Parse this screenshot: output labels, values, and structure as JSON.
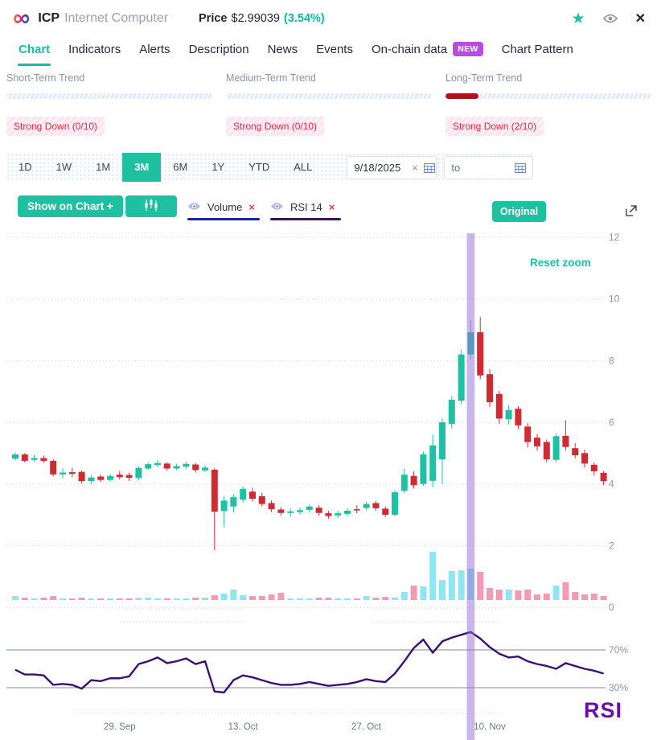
{
  "header": {
    "symbol": "ICP",
    "name": "Internet Computer",
    "price_label": "Price",
    "price": "$2.99039",
    "change": "(3.54%)",
    "accent_color": "#10b99c"
  },
  "tabs": [
    {
      "label": "Chart",
      "active": true
    },
    {
      "label": "Indicators"
    },
    {
      "label": "Alerts"
    },
    {
      "label": "Description"
    },
    {
      "label": "News"
    },
    {
      "label": "Events"
    },
    {
      "label": "On-chain data",
      "badge": "NEW"
    },
    {
      "label": "Chart Pattern"
    }
  ],
  "trends": [
    {
      "label": "Short-Term Trend",
      "status": "Strong Down (0/10)",
      "fill_pct": 0
    },
    {
      "label": "Medium-Term Trend",
      "status": "Strong Down (0/10)",
      "fill_pct": 0
    },
    {
      "label": "Long-Term Trend",
      "status": "Strong Down (2/10)",
      "fill_pct": 16
    }
  ],
  "range_buttons": [
    {
      "label": "1D"
    },
    {
      "label": "1W"
    },
    {
      "label": "1M"
    },
    {
      "label": "3M",
      "active": true
    },
    {
      "label": "6M"
    },
    {
      "label": "1Y"
    },
    {
      "label": "YTD"
    },
    {
      "label": "ALL"
    }
  ],
  "date_from": {
    "value": "9/18/2025",
    "clear": "×"
  },
  "date_to": {
    "placeholder": "to"
  },
  "controls": {
    "show_on_chart": "Show on Chart +",
    "indicators": [
      {
        "label": "Volume",
        "remove": "×",
        "underline_color": "#1a1adf"
      },
      {
        "label": "RSI 14",
        "remove": "×",
        "underline_color": "#3b1266"
      }
    ],
    "original": "Original",
    "reset_zoom": "Reset zoom"
  },
  "chart_data": {
    "type": "candlestick",
    "panes": [
      "price",
      "volume",
      "rsi"
    ],
    "y_axis": {
      "labels": [
        12,
        10,
        8,
        6,
        4,
        2,
        0
      ],
      "min": 0,
      "max": 12
    },
    "rsi_axis": {
      "labels": [
        "70%",
        "30%"
      ],
      "levels": [
        70,
        30
      ]
    },
    "rsi_label": "RSI",
    "x_ticks": [
      {
        "index": 11,
        "label": "29. Sep"
      },
      {
        "index": 24,
        "label": "13. Oct"
      },
      {
        "index": 37,
        "label": "27. Oct"
      },
      {
        "index": 50,
        "label": "10. Nov"
      }
    ],
    "highlight_index": 48,
    "candles": [
      [
        4.82,
        5.02,
        4.76,
        4.96
      ],
      [
        4.96,
        5.0,
        4.7,
        4.75
      ],
      [
        4.78,
        4.95,
        4.72,
        4.84
      ],
      [
        4.84,
        4.92,
        4.68,
        4.75
      ],
      [
        4.75,
        4.8,
        4.24,
        4.31
      ],
      [
        4.31,
        4.5,
        4.18,
        4.37
      ],
      [
        4.38,
        4.52,
        4.22,
        4.33
      ],
      [
        4.39,
        4.44,
        4.02,
        4.09
      ],
      [
        4.09,
        4.28,
        4.0,
        4.21
      ],
      [
        4.24,
        4.31,
        4.06,
        4.13
      ],
      [
        4.13,
        4.32,
        4.08,
        4.26
      ],
      [
        4.3,
        4.42,
        4.14,
        4.22
      ],
      [
        4.29,
        4.36,
        4.1,
        4.2
      ],
      [
        4.19,
        4.57,
        4.13,
        4.52
      ],
      [
        4.5,
        4.7,
        4.45,
        4.64
      ],
      [
        4.61,
        4.77,
        4.55,
        4.68
      ],
      [
        4.66,
        4.71,
        4.43,
        4.5
      ],
      [
        4.5,
        4.66,
        4.45,
        4.58
      ],
      [
        4.56,
        4.73,
        4.49,
        4.65
      ],
      [
        4.63,
        4.67,
        4.37,
        4.45
      ],
      [
        4.44,
        4.61,
        4.39,
        4.53
      ],
      [
        4.46,
        4.52,
        1.85,
        3.1
      ],
      [
        3.12,
        3.62,
        2.6,
        3.46
      ],
      [
        3.27,
        3.67,
        3.08,
        3.57
      ],
      [
        3.49,
        3.92,
        3.4,
        3.84
      ],
      [
        3.75,
        3.88,
        3.43,
        3.52
      ],
      [
        3.6,
        3.71,
        3.27,
        3.35
      ],
      [
        3.38,
        3.47,
        3.09,
        3.18
      ],
      [
        3.17,
        3.25,
        2.97,
        3.06
      ],
      [
        3.06,
        3.21,
        2.95,
        3.11
      ],
      [
        3.09,
        3.23,
        3.01,
        3.15
      ],
      [
        3.16,
        3.33,
        3.07,
        3.27
      ],
      [
        3.23,
        3.31,
        2.97,
        3.06
      ],
      [
        3.05,
        3.13,
        2.87,
        2.96
      ],
      [
        2.98,
        3.13,
        2.89,
        3.05
      ],
      [
        3.03,
        3.21,
        2.95,
        3.13
      ],
      [
        3.18,
        3.31,
        3.05,
        3.14
      ],
      [
        3.22,
        3.43,
        3.15,
        3.35
      ],
      [
        3.38,
        3.45,
        3.13,
        3.21
      ],
      [
        3.2,
        3.27,
        2.93,
        3.0
      ],
      [
        3.0,
        3.8,
        2.94,
        3.73
      ],
      [
        3.78,
        4.5,
        3.7,
        4.3
      ],
      [
        4.26,
        4.41,
        3.85,
        3.96
      ],
      [
        4.0,
        5.05,
        3.94,
        4.96
      ],
      [
        4.1,
        5.6,
        3.9,
        5.25
      ],
      [
        4.8,
        6.12,
        4.0,
        6.0
      ],
      [
        5.95,
        6.85,
        5.8,
        6.73
      ],
      [
        6.7,
        8.35,
        6.58,
        8.2
      ],
      [
        8.2,
        9.3,
        8.05,
        8.92
      ],
      [
        8.92,
        9.42,
        7.4,
        7.52
      ],
      [
        7.56,
        7.72,
        6.5,
        6.65
      ],
      [
        6.92,
        7.02,
        5.95,
        6.12
      ],
      [
        6.1,
        6.56,
        5.93,
        6.4
      ],
      [
        6.44,
        6.52,
        5.78,
        5.9
      ],
      [
        5.86,
        5.97,
        5.18,
        5.36
      ],
      [
        5.5,
        5.62,
        5.08,
        5.22
      ],
      [
        5.36,
        5.44,
        4.7,
        4.8
      ],
      [
        4.78,
        5.64,
        4.71,
        5.55
      ],
      [
        5.56,
        6.06,
        5.08,
        5.2
      ],
      [
        5.16,
        5.32,
        4.83,
        4.93
      ],
      [
        5.0,
        5.12,
        4.53,
        4.66
      ],
      [
        4.62,
        4.7,
        4.28,
        4.41
      ],
      [
        4.36,
        4.42,
        3.96,
        4.09
      ]
    ],
    "volumes": [
      5,
      3,
      2,
      3,
      5,
      2,
      2,
      3,
      2,
      2,
      2,
      2,
      2,
      3,
      3,
      2,
      2,
      2,
      2,
      3,
      3,
      6,
      8,
      13,
      6,
      5,
      5,
      7,
      9,
      2,
      2,
      2,
      3,
      3,
      2,
      2,
      2,
      5,
      3,
      4,
      3,
      10,
      18,
      17,
      60,
      25,
      36,
      37,
      39,
      35,
      15,
      13,
      13,
      12,
      13,
      7,
      8,
      18,
      22,
      10,
      7,
      8,
      5
    ],
    "rsi": [
      49,
      44,
      44,
      43,
      33,
      34,
      33,
      29,
      38,
      37,
      40,
      40,
      42,
      55,
      58,
      62,
      56,
      58,
      61,
      55,
      58,
      26,
      25,
      38,
      43,
      41,
      38,
      35,
      33,
      33,
      34,
      36,
      34,
      32,
      33,
      34,
      36,
      39,
      37,
      36,
      45,
      58,
      72,
      81,
      67,
      79,
      83,
      86,
      89,
      82,
      73,
      66,
      62,
      63,
      58,
      55,
      53,
      50,
      56,
      53,
      50,
      48,
      45
    ],
    "colors": {
      "up": "#1dc2a5",
      "down": "#d02a33",
      "vol_up": "#8fe5f2",
      "vol_down": "#f49ab5",
      "rsi_line": "#3d0f75",
      "highlight": "rgba(150,112,214,0.5)"
    }
  }
}
